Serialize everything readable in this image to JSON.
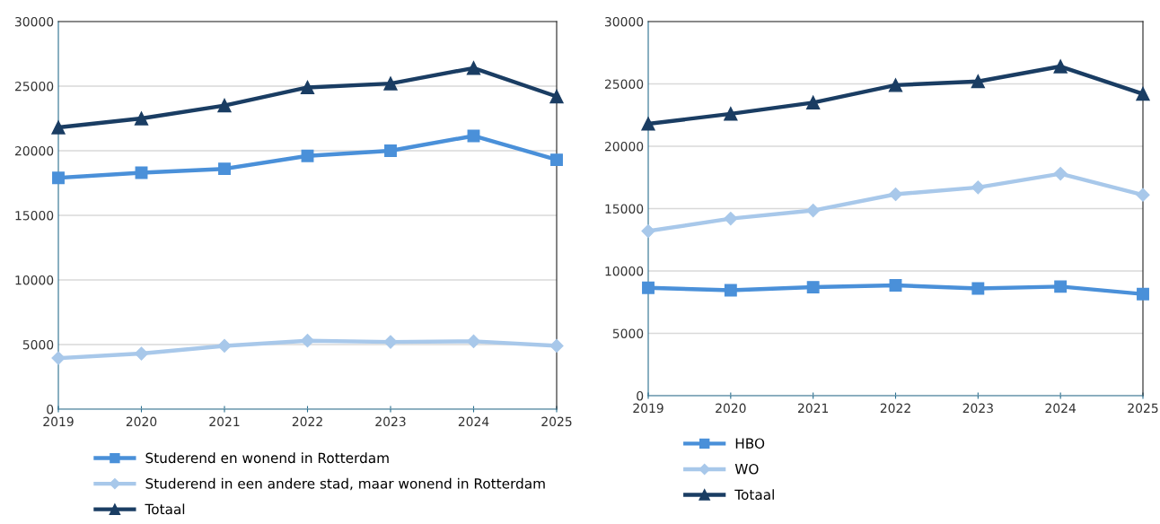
{
  "chart_data": [
    {
      "type": "line",
      "categories": [
        "2019",
        "2020",
        "2021",
        "2022",
        "2023",
        "2024",
        "2025"
      ],
      "ylim": [
        0,
        30000
      ],
      "yticks": [
        0,
        5000,
        10000,
        15000,
        20000,
        25000,
        30000
      ],
      "grid": "y",
      "legend": "bottom",
      "series": [
        {
          "name": "Studerend en wonend in Rotterdam",
          "color": "#4a90d9",
          "marker": "square",
          "values": [
            17900,
            18300,
            18600,
            19600,
            20000,
            21150,
            19300
          ]
        },
        {
          "name": "Studerend in een andere stad, maar wonend in Rotterdam",
          "color": "#a8c8ea",
          "marker": "diamond",
          "values": [
            3950,
            4300,
            4900,
            5300,
            5200,
            5250,
            4900
          ]
        },
        {
          "name": "Totaal",
          "color": "#1a3d63",
          "marker": "triangle",
          "values": [
            21800,
            22500,
            23500,
            24900,
            25200,
            26400,
            24200
          ]
        }
      ]
    },
    {
      "type": "line",
      "categories": [
        "2019",
        "2020",
        "2021",
        "2022",
        "2023",
        "2024",
        "2025"
      ],
      "ylim": [
        0,
        30000
      ],
      "yticks": [
        0,
        5000,
        10000,
        15000,
        20000,
        25000,
        30000
      ],
      "grid": "y",
      "legend": "bottom",
      "series": [
        {
          "name": "HBO",
          "color": "#4a90d9",
          "marker": "square",
          "values": [
            8650,
            8450,
            8700,
            8850,
            8600,
            8750,
            8150
          ]
        },
        {
          "name": "WO",
          "color": "#a8c8ea",
          "marker": "diamond",
          "values": [
            13200,
            14200,
            14850,
            16150,
            16700,
            17800,
            16100
          ]
        },
        {
          "name": "Totaal",
          "color": "#1a3d63",
          "marker": "triangle",
          "values": [
            21800,
            22600,
            23500,
            24900,
            25200,
            26400,
            24200
          ]
        }
      ]
    }
  ]
}
